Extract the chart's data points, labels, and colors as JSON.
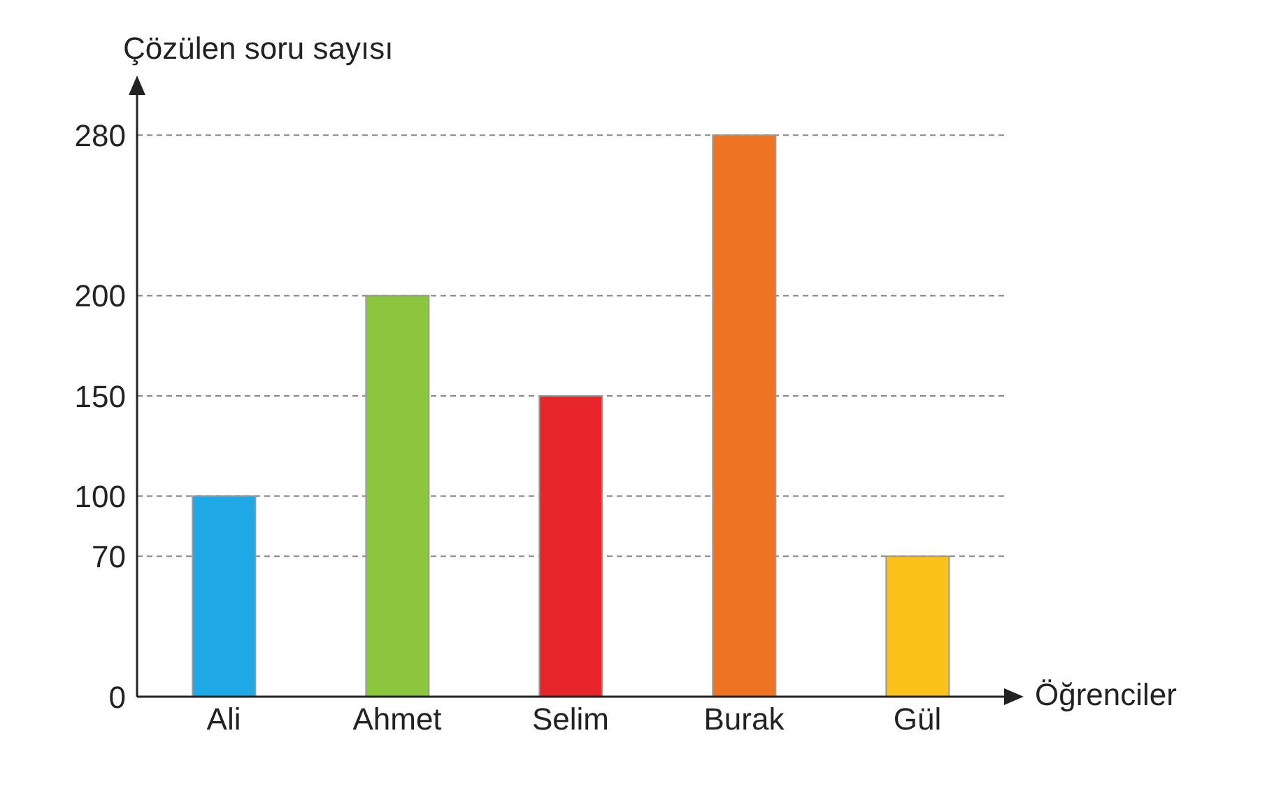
{
  "chart_data": {
    "type": "bar",
    "xlabel": "Öğrenciler",
    "ylabel": "Çözülen soru sayısı",
    "categories": [
      "Ali",
      "Ahmet",
      "Selim",
      "Burak",
      "Gül"
    ],
    "values": [
      100,
      200,
      150,
      280,
      70
    ],
    "colors": [
      "#1ea8e6",
      "#8cc63f",
      "#e8252b",
      "#ee7424",
      "#fbc21a"
    ],
    "ylim": [
      0,
      300
    ],
    "yticks": [
      0,
      70,
      100,
      150,
      200,
      280
    ],
    "grid": "y"
  }
}
